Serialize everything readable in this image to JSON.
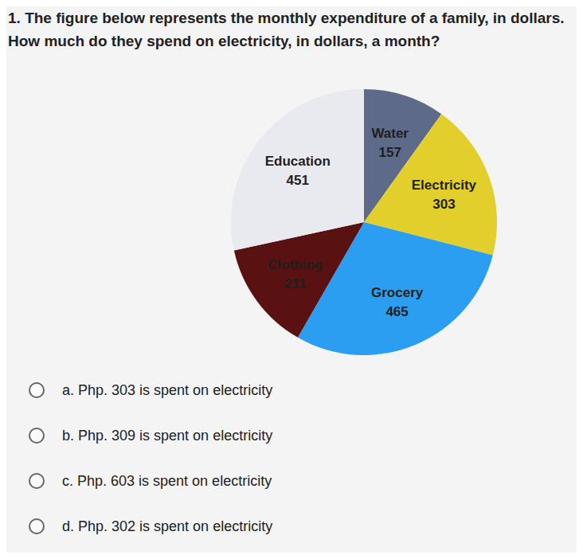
{
  "question": {
    "number": "1.",
    "text": "The figure below represents the monthly expenditure of a family, in dollars. How much do they spend on electricity, in dollars, a month?"
  },
  "chart_data": {
    "type": "pie",
    "categories": [
      "Water",
      "Electricity",
      "Grocery",
      "Clothing",
      "Education"
    ],
    "values": [
      157,
      303,
      465,
      211,
      451
    ],
    "colors": [
      "#5d6a8a",
      "#e2cf2c",
      "#2b9ef2",
      "#5a1111",
      "#e9eaef"
    ],
    "data_labels": true
  },
  "options": [
    "a. Php. 303 is spent on electricity",
    "b. Php. 309 is spent on electricity",
    "c. Php. 603 is spent on electricity",
    "d. Php. 302 is spent on electricity"
  ]
}
